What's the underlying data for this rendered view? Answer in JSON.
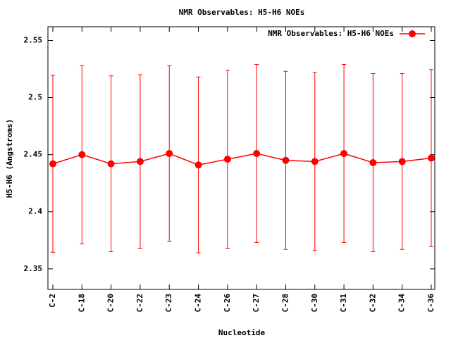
{
  "chart_data": {
    "type": "line",
    "title": "NMR Observables: H5-H6 NOEs",
    "x_label": "Nucleotide",
    "y_label": "H5-H6 (Angstroms)",
    "categories": [
      "C-2",
      "C-18",
      "C-20",
      "C-22",
      "C-23",
      "C-24",
      "C-26",
      "C-27",
      "C-28",
      "C-30",
      "C-31",
      "C-32",
      "C-34",
      "C-36"
    ],
    "series": [
      {
        "name": "NMR Observables: H5-H6 NOEs",
        "color": "#ff0000",
        "values": [
          2.442,
          2.45,
          2.442,
          2.444,
          2.451,
          2.441,
          2.446,
          2.451,
          2.445,
          2.444,
          2.451,
          2.443,
          2.444,
          2.447
        ],
        "errors": [
          0.0775,
          0.078,
          0.077,
          0.076,
          0.077,
          0.077,
          0.078,
          0.078,
          0.078,
          0.078,
          0.078,
          0.078,
          0.077,
          0.0775
        ]
      }
    ],
    "ylim": [
      2.332,
      2.562
    ],
    "yticks": [
      2.35,
      2.4,
      2.45,
      2.5,
      2.55
    ],
    "legend": "top-right"
  }
}
